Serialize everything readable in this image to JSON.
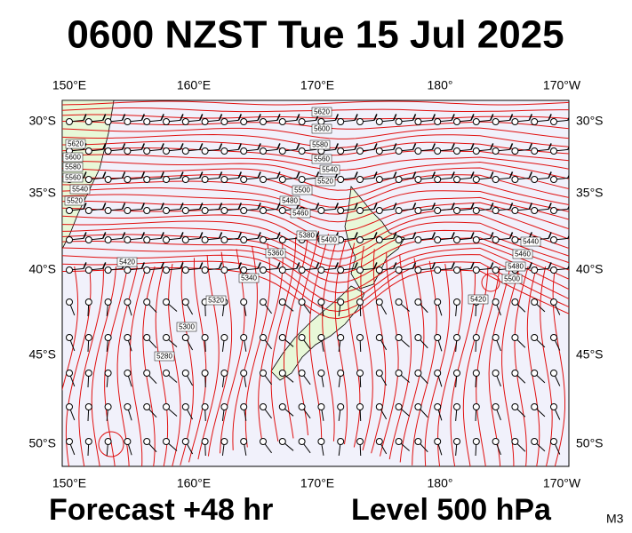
{
  "title": "0600 NZST Tue 15 Jul 2025",
  "map": {
    "lon_labels": [
      "150°E",
      "160°E",
      "170°E",
      "180°",
      "170°W"
    ],
    "lat_labels": [
      "30°S",
      "35°S",
      "40°S",
      "45°S",
      "50°S"
    ],
    "contour_labels": [
      "5620",
      "5600",
      "5580",
      "5560",
      "5540",
      "5520",
      "5500",
      "5480",
      "5460",
      "5620",
      "5600",
      "5580",
      "5560",
      "5540",
      "5520",
      "5420",
      "5400",
      "5380",
      "5360",
      "5340",
      "5320",
      "5300",
      "5280",
      "5440",
      "5460",
      "5480",
      "5500",
      "5420"
    ]
  },
  "footer": {
    "forecast": "Forecast +48 hr",
    "level": "Level 500 hPa",
    "model": "M3"
  }
}
